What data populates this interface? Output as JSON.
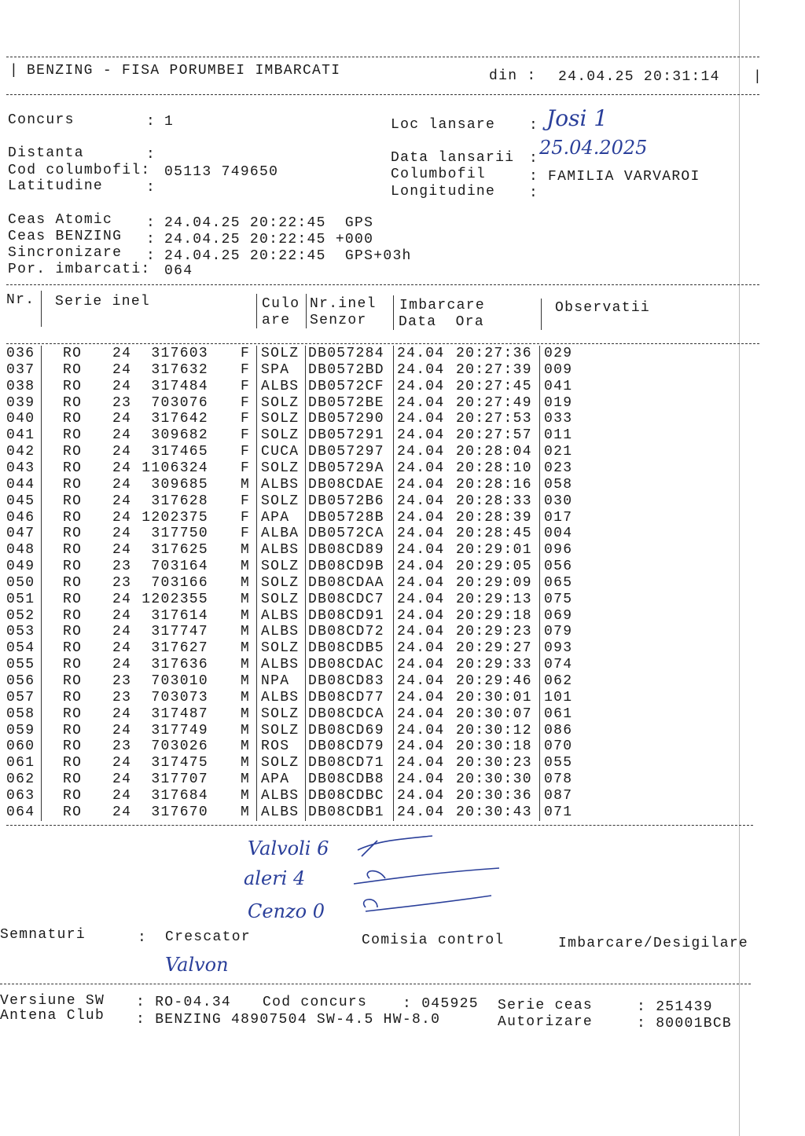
{
  "header": {
    "title": "BENZING - FISA PORUMBEI IMBARCATI",
    "din_label": "din :",
    "din_value": "24.04.25 20:31:14"
  },
  "info": {
    "concurs_label": "Concurs",
    "concurs_value": "1",
    "loc_lansare_label": "Loc lansare",
    "loc_lansare_value": "Josi 1",
    "distanta_label": "Distanta",
    "distanta_value": "",
    "data_lansarii_label": "Data lansarii",
    "data_lansarii_value": "25.04.2025",
    "cod_columbofil_label": "Cod columbofil:",
    "cod_columbofil_value": "05113 749650",
    "columbofil_label": "Columbofil",
    "columbofil_value": "FAMILIA VARVAROI",
    "latitudine_label": "Latitudine",
    "latitudine_value": "",
    "longitudine_label": "Longitudine",
    "longitudine_value": "",
    "ceas_atomic_label": "Ceas Atomic",
    "ceas_atomic_value": "24.04.25 20:22:45  GPS",
    "ceas_benzing_label": "Ceas BENZING",
    "ceas_benzing_value": "24.04.25 20:22:45 +000",
    "sincronizare_label": "Sincronizare",
    "sincronizare_value": "24.04.25 20:22:45  GPS+03h",
    "por_imbarcati_label": "Por. imbarcati:",
    "por_imbarcati_value": "064"
  },
  "table": {
    "headers": {
      "nr": "Nr.",
      "serie_inel": "Serie inel",
      "culoare_1": "Culo",
      "culoare_2": "are",
      "nr_inel_1": "Nr.inel",
      "nr_inel_2": "Senzor",
      "imbarcare_1": "Imbarcare",
      "imbarcare_2": "Data  Ora",
      "observatii": "Observatii"
    },
    "rows": [
      [
        "036",
        "RO",
        "24",
        "317603",
        "F",
        "SOLZ",
        "DB057284",
        "24.04",
        "20:27:36",
        "029"
      ],
      [
        "037",
        "RO",
        "24",
        "317632",
        "F",
        "SPA",
        "DB0572BD",
        "24.04",
        "20:27:39",
        "009"
      ],
      [
        "038",
        "RO",
        "24",
        "317484",
        "F",
        "ALBS",
        "DB0572CF",
        "24.04",
        "20:27:45",
        "041"
      ],
      [
        "039",
        "RO",
        "23",
        "703076",
        "F",
        "SOLZ",
        "DB0572BE",
        "24.04",
        "20:27:49",
        "019"
      ],
      [
        "040",
        "RO",
        "24",
        "317642",
        "F",
        "SOLZ",
        "DB057290",
        "24.04",
        "20:27:53",
        "033"
      ],
      [
        "041",
        "RO",
        "24",
        "309682",
        "F",
        "SOLZ",
        "DB057291",
        "24.04",
        "20:27:57",
        "011"
      ],
      [
        "042",
        "RO",
        "24",
        "317465",
        "F",
        "CUCA",
        "DB057297",
        "24.04",
        "20:28:04",
        "021"
      ],
      [
        "043",
        "RO",
        "24",
        "1106324",
        "F",
        "SOLZ",
        "DB05729A",
        "24.04",
        "20:28:10",
        "023"
      ],
      [
        "044",
        "RO",
        "24",
        "309685",
        "M",
        "ALBS",
        "DB08CDAE",
        "24.04",
        "20:28:16",
        "058"
      ],
      [
        "045",
        "RO",
        "24",
        "317628",
        "F",
        "SOLZ",
        "DB0572B6",
        "24.04",
        "20:28:33",
        "030"
      ],
      [
        "046",
        "RO",
        "24",
        "1202375",
        "F",
        "APA",
        "DB05728B",
        "24.04",
        "20:28:39",
        "017"
      ],
      [
        "047",
        "RO",
        "24",
        "317750",
        "F",
        "ALBA",
        "DB0572CA",
        "24.04",
        "20:28:45",
        "004"
      ],
      [
        "048",
        "RO",
        "24",
        "317625",
        "M",
        "ALBS",
        "DB08CD89",
        "24.04",
        "20:29:01",
        "096"
      ],
      [
        "049",
        "RO",
        "23",
        "703164",
        "M",
        "SOLZ",
        "DB08CD9B",
        "24.04",
        "20:29:05",
        "056"
      ],
      [
        "050",
        "RO",
        "23",
        "703166",
        "M",
        "SOLZ",
        "DB08CDAA",
        "24.04",
        "20:29:09",
        "065"
      ],
      [
        "051",
        "RO",
        "24",
        "1202355",
        "M",
        "SOLZ",
        "DB08CDC7",
        "24.04",
        "20:29:13",
        "075"
      ],
      [
        "052",
        "RO",
        "24",
        "317614",
        "M",
        "ALBS",
        "DB08CD91",
        "24.04",
        "20:29:18",
        "069"
      ],
      [
        "053",
        "RO",
        "24",
        "317747",
        "M",
        "ALBS",
        "DB08CD72",
        "24.04",
        "20:29:23",
        "079"
      ],
      [
        "054",
        "RO",
        "24",
        "317627",
        "M",
        "SOLZ",
        "DB08CDB5",
        "24.04",
        "20:29:27",
        "093"
      ],
      [
        "055",
        "RO",
        "24",
        "317636",
        "M",
        "ALBS",
        "DB08CDAC",
        "24.04",
        "20:29:33",
        "074"
      ],
      [
        "056",
        "RO",
        "23",
        "703010",
        "M",
        "NPA",
        "DB08CD83",
        "24.04",
        "20:29:46",
        "062"
      ],
      [
        "057",
        "RO",
        "23",
        "703073",
        "M",
        "ALBS",
        "DB08CD77",
        "24.04",
        "20:30:01",
        "101"
      ],
      [
        "058",
        "RO",
        "24",
        "317487",
        "M",
        "SOLZ",
        "DB08CDCA",
        "24.04",
        "20:30:07",
        "061"
      ],
      [
        "059",
        "RO",
        "24",
        "317749",
        "M",
        "SOLZ",
        "DB08CD69",
        "24.04",
        "20:30:12",
        "086"
      ],
      [
        "060",
        "RO",
        "23",
        "703026",
        "M",
        "ROS",
        "DB08CD79",
        "24.04",
        "20:30:18",
        "070"
      ],
      [
        "061",
        "RO",
        "24",
        "317475",
        "M",
        "SOLZ",
        "DB08CD71",
        "24.04",
        "20:30:23",
        "055"
      ],
      [
        "062",
        "RO",
        "24",
        "317707",
        "M",
        "APA",
        "DB08CDB8",
        "24.04",
        "20:30:30",
        "078"
      ],
      [
        "063",
        "RO",
        "24",
        "317684",
        "M",
        "ALBS",
        "DB08CDBC",
        "24.04",
        "20:30:36",
        "087"
      ],
      [
        "064",
        "RO",
        "24",
        "317670",
        "M",
        "ALBS",
        "DB08CDB1",
        "24.04",
        "20:30:43",
        "071"
      ]
    ]
  },
  "handwritten_notes": [
    "Valvoli 6",
    "aleri 4",
    "Cenzo 0"
  ],
  "signatures": {
    "label": "Semnaturi",
    "crescator": "Crescator",
    "comisia": "Comisia control",
    "imbarcare": "Imbarcare/Desigilare",
    "crescator_signature": "Valvon"
  },
  "footer": {
    "versiune_label": "Versiune SW",
    "versiune_value": ": RO-04.34",
    "cod_concurs_label": "Cod concurs",
    "cod_concurs_value": ": 045925",
    "serie_ceas_label": "Serie ceas",
    "serie_ceas_value": ": 251439",
    "antena_label": "Antena Club",
    "antena_value": ": BENZING 48907504 SW-4.5 HW-8.0",
    "autorizare_label": "Autorizare",
    "autorizare_value": ": 80001BCB"
  }
}
